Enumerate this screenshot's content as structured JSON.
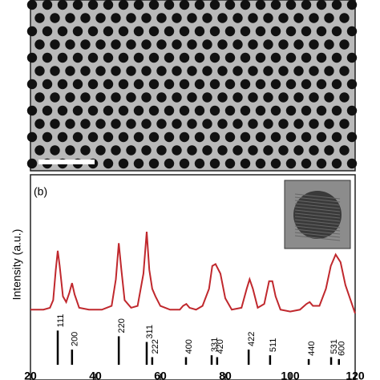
{
  "chart_data": {
    "type": "line",
    "panel_label": "(b)",
    "y_label": "Intensity (a.u.)",
    "xlim": [
      20,
      120
    ],
    "xticks": [
      20,
      40,
      60,
      80,
      100,
      120
    ],
    "ylim": [
      0,
      100
    ],
    "x": [
      20,
      24,
      26,
      27,
      27.8,
      28.4,
      29,
      30,
      31,
      32,
      32.8,
      33.6,
      35,
      38,
      42,
      45,
      46.3,
      47.2,
      48,
      49,
      51,
      53,
      54.8,
      55.8,
      56.6,
      57.5,
      58.5,
      60,
      63,
      66,
      67,
      68,
      69,
      71,
      73,
      75,
      76,
      77,
      78.5,
      80,
      82,
      85,
      86.6,
      87.5,
      88.5,
      90,
      92,
      93.5,
      94.5,
      95.5,
      97,
      100,
      103,
      105,
      106,
      107,
      109,
      111,
      112.5,
      114,
      115.5,
      117,
      119,
      120
    ],
    "series": [
      {
        "color": "#c0282d",
        "values": [
          29,
          29,
          30,
          34,
          50,
          60,
          52,
          36,
          33,
          38,
          43,
          37,
          30,
          29,
          29,
          31,
          45,
          64,
          50,
          34,
          30,
          31,
          48,
          70,
          50,
          40,
          36,
          31,
          29,
          29,
          31,
          32,
          30,
          29,
          31,
          40,
          52,
          53,
          48,
          35,
          29,
          30,
          40,
          45,
          40,
          30,
          32,
          44,
          44,
          36,
          29,
          28,
          29,
          32,
          33,
          31,
          31,
          40,
          52,
          58,
          54,
          42,
          32,
          27
        ]
      }
    ],
    "reflections": {
      "labels": [
        "111",
        "200",
        "220",
        "311",
        "222",
        "400",
        "331",
        "420",
        "422",
        "511",
        "440",
        "531",
        "600"
      ],
      "positions": [
        28.4,
        32.8,
        47.2,
        55.8,
        57.5,
        67.9,
        75.8,
        77.5,
        87.2,
        93.8,
        105.7,
        112.6,
        115
      ],
      "values": [
        18,
        8,
        15,
        12,
        4,
        4,
        5,
        4,
        8,
        5,
        3,
        4,
        3
      ]
    }
  }
}
